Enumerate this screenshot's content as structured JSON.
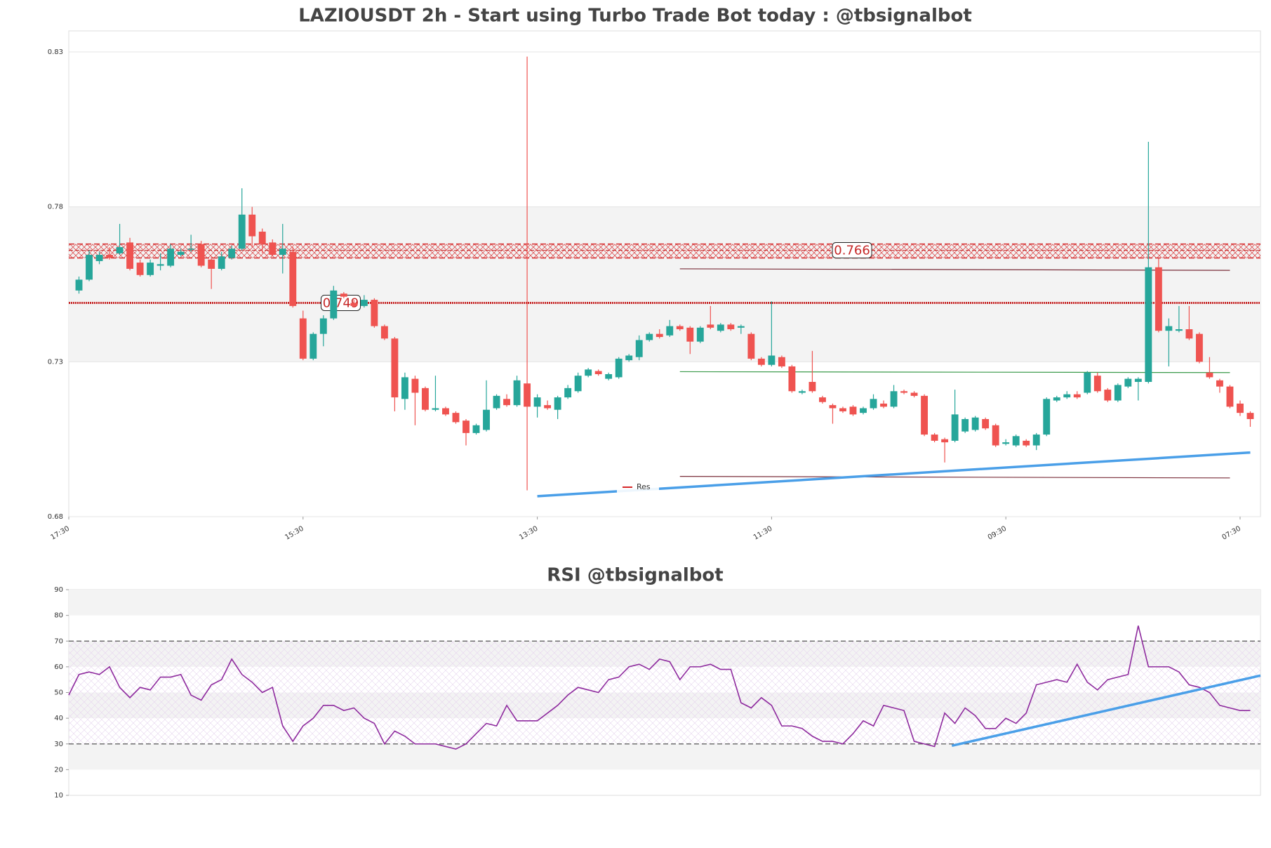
{
  "chart_data": [
    {
      "type": "candlestick",
      "title": "LAZIOUSDT 2h - Start using Turbo Trade Bot today : @tbsignalbot",
      "x": [
        1,
        2,
        3,
        4,
        5,
        6,
        7,
        8,
        9,
        10,
        11,
        12,
        13,
        14,
        15,
        16,
        17,
        18,
        19,
        20,
        21,
        22,
        23,
        24,
        25,
        26,
        27,
        28,
        29,
        30,
        31,
        32,
        33,
        34,
        35,
        36,
        37,
        38,
        39,
        40,
        41,
        42,
        43,
        44,
        45,
        46,
        47,
        48,
        49,
        50,
        51,
        52,
        53,
        54,
        55,
        56,
        57,
        58,
        59,
        60,
        61,
        62,
        63,
        64,
        65,
        66,
        67,
        68,
        69,
        70,
        71,
        72,
        73,
        74,
        75,
        76,
        77,
        78,
        79,
        80,
        81,
        82,
        83,
        84,
        85,
        86,
        87,
        88,
        89,
        90,
        91,
        92,
        93,
        94,
        95,
        96,
        97,
        98,
        99,
        100,
        101,
        102,
        103,
        104,
        105,
        106,
        107,
        108,
        109,
        110,
        111,
        112,
        113,
        114,
        115,
        116
      ],
      "open": [
        0.753,
        0.7565,
        0.7625,
        0.7645,
        0.765,
        0.7685,
        0.762,
        0.758,
        0.761,
        0.761,
        0.7645,
        0.7665,
        0.768,
        0.763,
        0.76,
        0.7635,
        0.7665,
        0.7775,
        0.772,
        0.7685,
        0.7645,
        0.7655,
        0.744,
        0.731,
        0.739,
        0.744,
        0.752,
        0.749,
        0.748,
        0.75,
        0.7415,
        0.7375,
        0.718,
        0.7245,
        0.7215,
        0.7145,
        0.715,
        0.7135,
        0.711,
        0.707,
        0.708,
        0.715,
        0.718,
        0.716,
        0.723,
        0.7155,
        0.716,
        0.7145,
        0.7185,
        0.7205,
        0.7255,
        0.727,
        0.7245,
        0.725,
        0.7305,
        0.7315,
        0.737,
        0.739,
        0.7385,
        0.7415,
        0.741,
        0.7365,
        0.742,
        0.74,
        0.742,
        0.741,
        0.739,
        0.731,
        0.729,
        0.7315,
        0.7285,
        0.72,
        0.7235,
        0.7185,
        0.716,
        0.715,
        0.7155,
        0.7135,
        0.715,
        0.7165,
        0.7155,
        0.7205,
        0.72,
        0.719,
        0.7065,
        0.705,
        0.7045,
        0.7075,
        0.708,
        0.7115,
        0.7095,
        0.7035,
        0.703,
        0.7045,
        0.703,
        0.7065,
        0.7175,
        0.7185,
        0.7195,
        0.72,
        0.7255,
        0.721,
        0.7175,
        0.722,
        0.7235,
        0.7235,
        0.7605,
        0.74,
        0.74,
        0.7405,
        0.739,
        0.7265,
        0.724,
        0.722,
        0.7165,
        0.7135
      ],
      "high": [
        0.7575,
        0.766,
        0.7655,
        0.767,
        0.7745,
        0.77,
        0.763,
        0.763,
        0.765,
        0.768,
        0.7665,
        0.771,
        0.769,
        0.764,
        0.7655,
        0.7675,
        0.786,
        0.78,
        0.773,
        0.7695,
        0.7745,
        0.767,
        0.7465,
        0.7395,
        0.745,
        0.7545,
        0.7525,
        0.75,
        0.7515,
        0.7505,
        0.742,
        0.738,
        0.7265,
        0.7255,
        0.722,
        0.7255,
        0.7155,
        0.714,
        0.7115,
        0.71,
        0.724,
        0.7195,
        0.7195,
        0.7255,
        0.8285,
        0.7195,
        0.7175,
        0.719,
        0.7225,
        0.7265,
        0.728,
        0.7275,
        0.7265,
        0.7315,
        0.7325,
        0.7385,
        0.7395,
        0.7405,
        0.7435,
        0.742,
        0.7415,
        0.7415,
        0.748,
        0.7425,
        0.7425,
        0.742,
        0.7395,
        0.7315,
        0.7495,
        0.732,
        0.729,
        0.721,
        0.7335,
        0.719,
        0.7165,
        0.7155,
        0.716,
        0.7155,
        0.7195,
        0.7175,
        0.7225,
        0.721,
        0.7205,
        0.7195,
        0.707,
        0.7055,
        0.721,
        0.712,
        0.7125,
        0.712,
        0.71,
        0.705,
        0.7065,
        0.705,
        0.707,
        0.7185,
        0.719,
        0.7205,
        0.7205,
        0.727,
        0.7265,
        0.7215,
        0.723,
        0.725,
        0.725,
        0.801,
        0.7635,
        0.744,
        0.748,
        0.748,
        0.7395,
        0.7315,
        0.7245,
        0.7225,
        0.7175,
        0.714
      ],
      "low": [
        0.752,
        0.756,
        0.7615,
        0.763,
        0.7645,
        0.7595,
        0.7575,
        0.7575,
        0.7595,
        0.7605,
        0.764,
        0.7655,
        0.7605,
        0.7535,
        0.7595,
        0.763,
        0.766,
        0.767,
        0.765,
        0.764,
        0.7585,
        0.7475,
        0.7305,
        0.7305,
        0.735,
        0.7435,
        0.7505,
        0.7475,
        0.7475,
        0.741,
        0.737,
        0.714,
        0.7145,
        0.7095,
        0.714,
        0.714,
        0.7125,
        0.71,
        0.703,
        0.7065,
        0.7075,
        0.7145,
        0.7155,
        0.7155,
        0.6885,
        0.712,
        0.7145,
        0.7115,
        0.718,
        0.72,
        0.725,
        0.7255,
        0.724,
        0.7245,
        0.73,
        0.7305,
        0.7365,
        0.7375,
        0.738,
        0.74,
        0.7325,
        0.736,
        0.7405,
        0.7395,
        0.74,
        0.739,
        0.7305,
        0.7285,
        0.7285,
        0.728,
        0.72,
        0.7195,
        0.72,
        0.7165,
        0.71,
        0.7135,
        0.7125,
        0.713,
        0.7145,
        0.715,
        0.715,
        0.7195,
        0.7185,
        0.706,
        0.704,
        0.6975,
        0.704,
        0.707,
        0.7075,
        0.708,
        0.7025,
        0.703,
        0.7025,
        0.7025,
        0.7015,
        0.706,
        0.717,
        0.718,
        0.718,
        0.7195,
        0.72,
        0.717,
        0.717,
        0.7215,
        0.7175,
        0.723,
        0.7395,
        0.7285,
        0.7395,
        0.737,
        0.7295,
        0.7245,
        0.72,
        0.715,
        0.7125,
        0.709
      ],
      "close": [
        0.7565,
        0.7645,
        0.7645,
        0.7635,
        0.767,
        0.76,
        0.758,
        0.762,
        0.7615,
        0.7665,
        0.7655,
        0.7665,
        0.761,
        0.76,
        0.764,
        0.7665,
        0.7775,
        0.7705,
        0.768,
        0.7645,
        0.7665,
        0.748,
        0.731,
        0.739,
        0.744,
        0.753,
        0.751,
        0.748,
        0.75,
        0.7415,
        0.7375,
        0.7185,
        0.725,
        0.72,
        0.7145,
        0.715,
        0.713,
        0.7105,
        0.707,
        0.7095,
        0.7145,
        0.719,
        0.716,
        0.724,
        0.7155,
        0.7185,
        0.715,
        0.7185,
        0.7215,
        0.7255,
        0.7275,
        0.726,
        0.726,
        0.731,
        0.732,
        0.737,
        0.739,
        0.738,
        0.7415,
        0.7405,
        0.7365,
        0.741,
        0.741,
        0.742,
        0.7405,
        0.7415,
        0.731,
        0.729,
        0.732,
        0.7285,
        0.7205,
        0.7205,
        0.7205,
        0.717,
        0.715,
        0.714,
        0.713,
        0.715,
        0.718,
        0.7155,
        0.7205,
        0.72,
        0.719,
        0.7065,
        0.7045,
        0.704,
        0.713,
        0.7115,
        0.712,
        0.7085,
        0.703,
        0.704,
        0.706,
        0.703,
        0.7065,
        0.718,
        0.7185,
        0.7195,
        0.7185,
        0.7265,
        0.7205,
        0.7175,
        0.7225,
        0.7245,
        0.7245,
        0.7605,
        0.74,
        0.7415,
        0.7405,
        0.7375,
        0.73,
        0.725,
        0.722,
        0.7155,
        0.7135,
        0.7115
      ],
      "up_color": "#26a69a",
      "down_color": "#ef5350",
      "xlim": [
        0,
        117
      ],
      "xticks": [
        {
          "value": 0,
          "label": "17:30"
        },
        {
          "value": 23,
          "label": "15:30"
        },
        {
          "value": 46,
          "label": "13:30"
        },
        {
          "value": 69,
          "label": "11:30"
        },
        {
          "value": 92,
          "label": "09:30"
        },
        {
          "value": 115,
          "label": "07:30"
        }
      ],
      "ylim": [
        0.68,
        0.8368
      ],
      "yticks": [
        0.68,
        0.73,
        0.78,
        0.83
      ],
      "shaded_band": [
        0.73,
        0.78
      ],
      "zone": [
        0.7635,
        0.768
      ],
      "levels": [
        {
          "value": 0.749,
          "label": "0.749"
        },
        {
          "value": 0.766,
          "label": "0.766"
        }
      ],
      "lines": [
        {
          "color": "#7a2e3a",
          "x": [
            60,
            114
          ],
          "values": [
            0.76,
            0.7595
          ]
        },
        {
          "color": "#3a9a4a",
          "x": [
            60,
            114
          ],
          "values": [
            0.7268,
            0.7265
          ]
        },
        {
          "color": "#7a2e3a",
          "x": [
            60,
            114
          ],
          "values": [
            0.693,
            0.6925
          ]
        },
        {
          "color": "#4a9fe8",
          "x": [
            46,
            116
          ],
          "values": [
            0.6866,
            0.7007
          ]
        }
      ],
      "legend": {
        "name": "Res",
        "color": "#d62728",
        "loc": "lower center"
      }
    },
    {
      "type": "line",
      "title": "RSI @tbsignalbot",
      "x": [
        0,
        1,
        2,
        3,
        4,
        5,
        6,
        7,
        8,
        9,
        10,
        11,
        12,
        13,
        14,
        15,
        16,
        17,
        18,
        19,
        20,
        21,
        22,
        23,
        24,
        25,
        26,
        27,
        28,
        29,
        30,
        31,
        32,
        33,
        34,
        35,
        36,
        37,
        38,
        39,
        40,
        41,
        42,
        43,
        44,
        45,
        46,
        47,
        48,
        49,
        50,
        51,
        52,
        53,
        54,
        55,
        56,
        57,
        58,
        59,
        60,
        61,
        62,
        63,
        64,
        65,
        66,
        67,
        68,
        69,
        70,
        71,
        72,
        73,
        74,
        75,
        76,
        77,
        78,
        79,
        80,
        81,
        82,
        83,
        84,
        85,
        86,
        87,
        88,
        89,
        90,
        91,
        92,
        93,
        94,
        95,
        96,
        97,
        98,
        99,
        100,
        101,
        102,
        103,
        104,
        105,
        106,
        107,
        108,
        109,
        110,
        111,
        112,
        113,
        114,
        115,
        116
      ],
      "values": [
        49,
        57,
        58,
        57,
        60,
        52,
        48,
        52,
        51,
        56,
        56,
        57,
        49,
        47,
        53,
        55,
        63,
        57,
        54,
        50,
        52,
        37,
        31,
        37,
        40,
        45,
        45,
        43,
        44,
        40,
        38,
        30,
        35,
        33,
        30,
        30,
        30,
        29,
        28,
        30,
        34,
        38,
        37,
        45,
        39,
        39,
        39,
        42,
        45,
        49,
        52,
        51,
        50,
        55,
        56,
        60,
        61,
        59,
        63,
        62,
        55,
        60,
        60,
        61,
        59,
        59,
        46,
        44,
        48,
        45,
        37,
        37,
        36,
        33,
        31,
        31,
        30,
        34,
        39,
        37,
        45,
        44,
        43,
        31,
        30,
        29,
        42,
        38,
        44,
        41,
        36,
        36,
        40,
        38,
        42,
        53,
        54,
        55,
        54,
        61,
        54,
        51,
        55,
        56,
        57,
        76,
        60,
        60,
        60,
        58,
        53,
        52,
        50,
        45,
        44,
        43,
        43
      ],
      "color": "#8e2a9e",
      "xlim": [
        0,
        117
      ],
      "ylim": [
        10,
        90
      ],
      "yticks": [
        10,
        20,
        30,
        40,
        50,
        60,
        70,
        80,
        90
      ],
      "shaded_bands": [
        [
          80,
          90
        ],
        [
          60,
          70
        ],
        [
          40,
          50
        ],
        [
          20,
          30
        ]
      ],
      "hatch_band": [
        30,
        70
      ],
      "dashed_levels": [
        30,
        70
      ],
      "trend": {
        "color": "#4a9fe8",
        "x": [
          86.7,
          117
        ],
        "values": [
          29.3,
          56.6
        ]
      }
    }
  ]
}
